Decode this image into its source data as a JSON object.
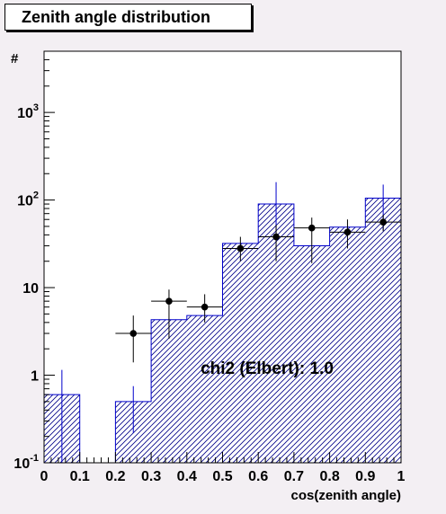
{
  "chart_data": {
    "type": "bar",
    "title": "Zenith angle distribution",
    "xlabel": "cos(zenith angle)",
    "ylabel": "#",
    "xlim": [
      0,
      1
    ],
    "ylim": [
      0.1,
      5000
    ],
    "yscale": "log",
    "grid": false,
    "x_ticks": [
      "0",
      "0.1",
      "0.2",
      "0.3",
      "0.4",
      "0.5",
      "0.6",
      "0.7",
      "0.8",
      "0.9",
      "1"
    ],
    "y_ticks": [
      {
        "value": 0.1,
        "base": "10",
        "exp": "-1"
      },
      {
        "value": 1,
        "base": "1",
        "exp": ""
      },
      {
        "value": 10,
        "base": "10",
        "exp": ""
      },
      {
        "value": 100,
        "base": "10",
        "exp": "2"
      },
      {
        "value": 1000,
        "base": "10",
        "exp": "3"
      }
    ],
    "bin_edges": [
      0,
      0.1,
      0.2,
      0.3,
      0.4,
      0.5,
      0.6,
      0.7,
      0.8,
      0.9,
      1.0
    ],
    "series": [
      {
        "style": "histogram",
        "values": [
          0.6,
          0,
          0.5,
          4.3,
          4.8,
          32,
          90,
          30,
          49,
          105
        ],
        "err_low": [
          0.1,
          null,
          0.22,
          null,
          null,
          null,
          40,
          null,
          null,
          45
        ],
        "err_high": [
          1.15,
          null,
          0.75,
          null,
          null,
          null,
          160,
          null,
          null,
          150
        ],
        "color": "#0000cc"
      },
      {
        "style": "points",
        "x": [
          0.25,
          0.35,
          0.45,
          0.55,
          0.65,
          0.75,
          0.85,
          0.95
        ],
        "values": [
          3,
          7,
          6,
          28,
          38,
          48,
          43,
          56
        ],
        "err_low": [
          1.4,
          2.6,
          4,
          20,
          20,
          19,
          28,
          44
        ],
        "err_high": [
          4.8,
          9.5,
          8.4,
          38,
          52,
          63,
          60,
          68
        ],
        "color": "#000000"
      }
    ],
    "annotations": [
      {
        "text": "chi2 (Elbert): 1.0"
      }
    ]
  }
}
